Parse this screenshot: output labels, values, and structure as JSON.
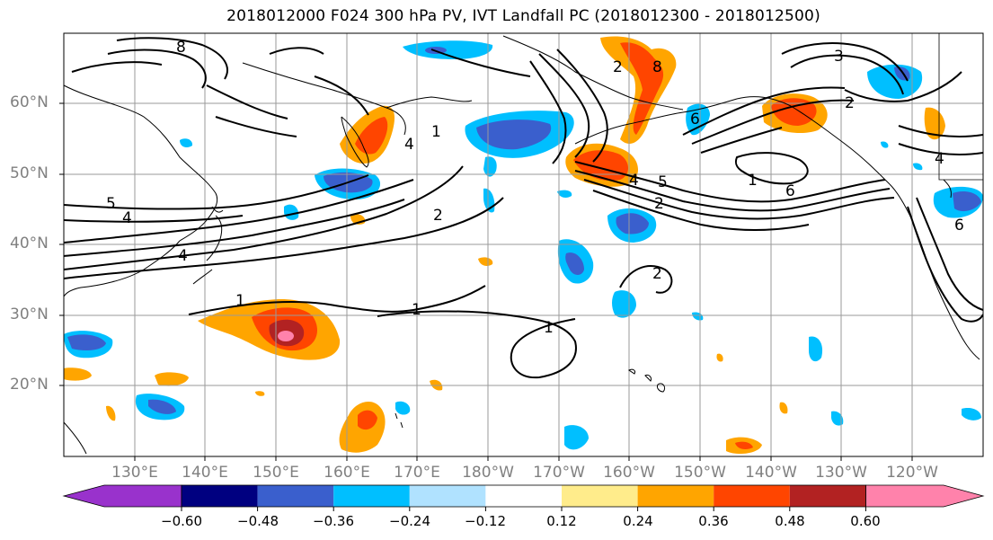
{
  "title": "2018012000 F024 300 hPa PV, IVT Landfall PC (2018012300 - 2018012500)",
  "lat_labels": [
    "60°N",
    "50°N",
    "40°N",
    "30°N",
    "20°N"
  ],
  "lon_labels": [
    "130°E",
    "140°E",
    "150°E",
    "160°E",
    "170°E",
    "180°W",
    "170°W",
    "160°W",
    "150°W",
    "140°W",
    "130°W",
    "120°W"
  ],
  "contour_labels": [
    "1",
    "1",
    "1",
    "1",
    "2",
    "2",
    "2",
    "4",
    "4",
    "4",
    "4",
    "5",
    "5",
    "6",
    "6",
    "8",
    "8",
    "1",
    "3",
    "4",
    "6",
    "2",
    "2"
  ],
  "colorbar": {
    "tick_labels": [
      "−0.60",
      "−0.48",
      "−0.36",
      "−0.24",
      "−0.12",
      "0.12",
      "0.24",
      "0.36",
      "0.48",
      "0.60"
    ],
    "colors": [
      "#9932cc",
      "#000080",
      "#3a5fcd",
      "#00bfff",
      "#b0e2ff",
      "#ffffff",
      "#ffec8b",
      "#ffa500",
      "#ff4500",
      "#b22222",
      "#ff82ab"
    ]
  }
}
